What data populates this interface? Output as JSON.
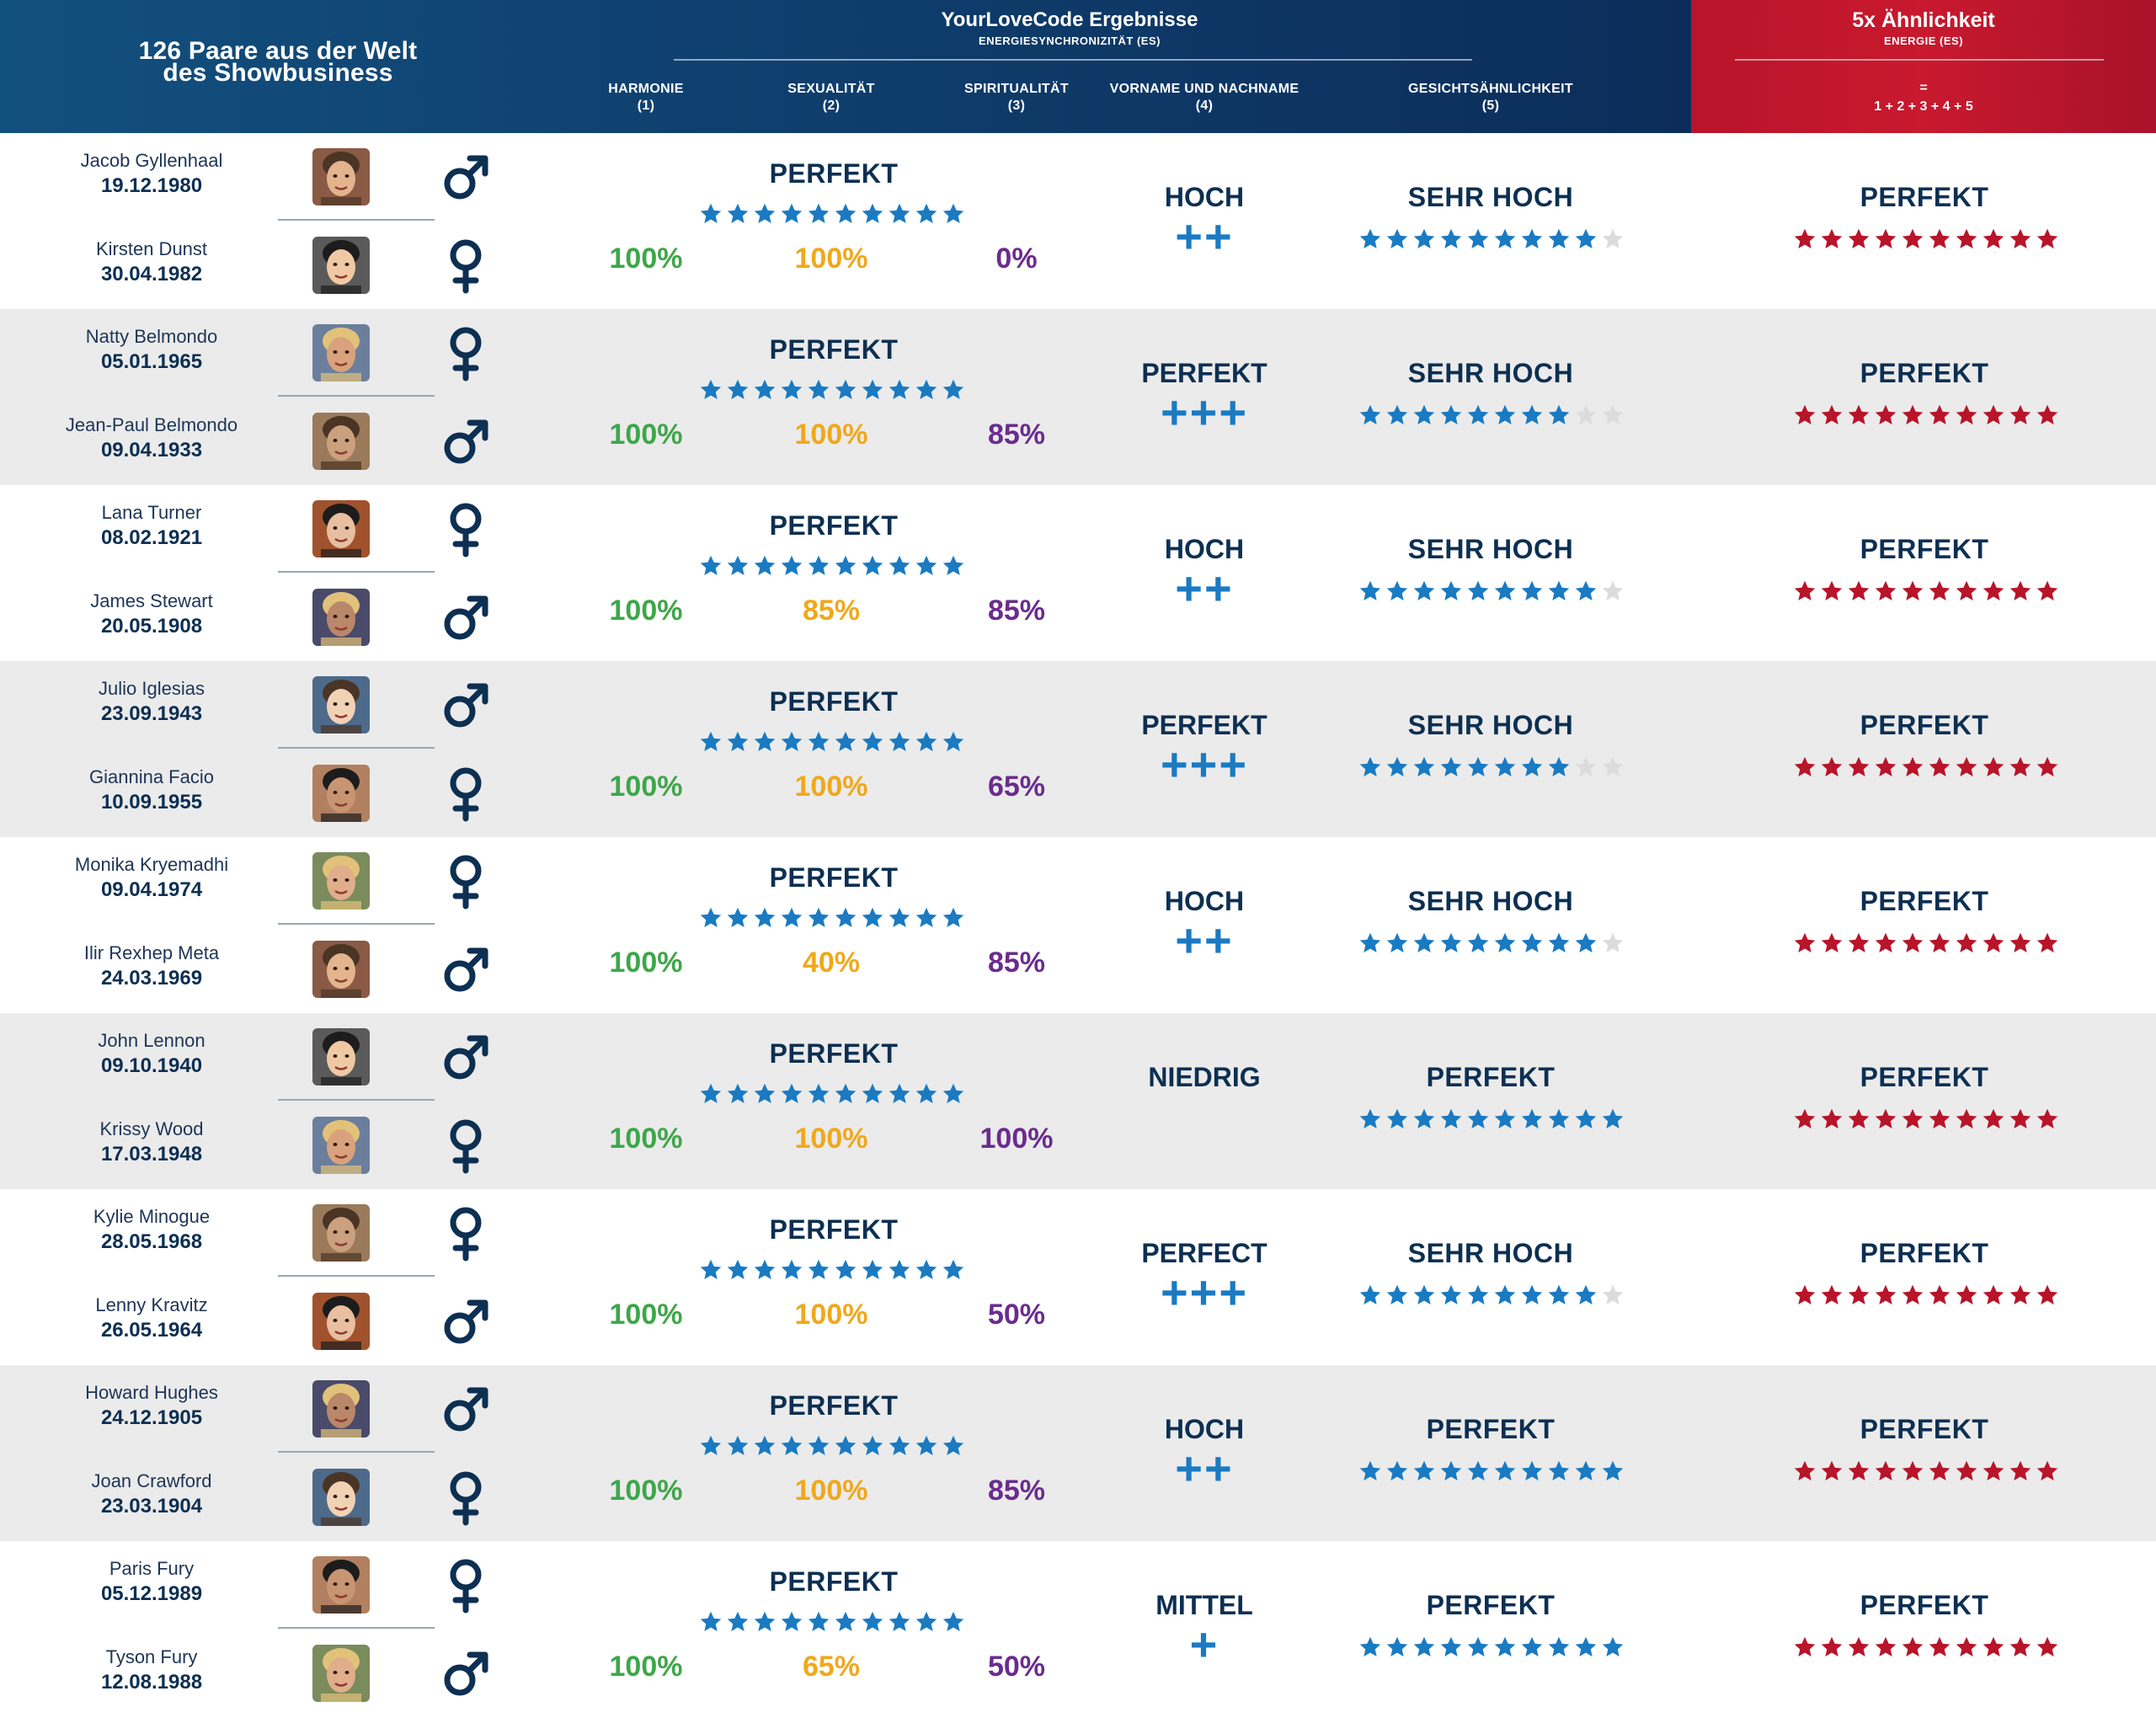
{
  "header": {
    "left_title_line1": "126 Paare aus der Welt",
    "left_title_line2": "des Showbusiness",
    "main_title": "YourLoveCode Ergebnisse",
    "main_subtitle": "ENERGIESYNCHRONIZITÄT (ES)",
    "columns": [
      {
        "label": "HARMONIE",
        "num": "(1)"
      },
      {
        "label": "SEXUALITÄT",
        "num": "(2)"
      },
      {
        "label": "SPIRITUALITÄT",
        "num": "(3)"
      },
      {
        "label": "VORNAME UND NACHNAME",
        "num": "(4)"
      },
      {
        "label": "GESICHTSÄHNLICHKEIT",
        "num": "(5)"
      }
    ],
    "red_title": "5x Ähnlichkeit",
    "red_subtitle": "ENERGIE (ES)",
    "red_eq_line1": "=",
    "red_eq_line2": "1 + 2 + 3 + 4 + 5"
  },
  "colors": {
    "harmony": "#3ea64a",
    "sexuality": "#f0a81b",
    "spirituality": "#6a2c8e",
    "blue_star": "#1a7ac2",
    "red_star": "#b8142a",
    "empty_star": "#dcdcdc"
  },
  "pairs": [
    {
      "p1": {
        "name": "Jacob Gyllenhaal",
        "date": "19.12.1980",
        "gender": "male-icon"
      },
      "p2": {
        "name": "Kirsten Dunst",
        "date": "30.04.1982",
        "gender": "female-icon"
      },
      "es_label": "PERFEKT",
      "es_stars": 10,
      "harmony": "100%",
      "sexuality": "100%",
      "spirituality": "0%",
      "name_label": "HOCH",
      "name_plus": "++",
      "face_label": "SEHR HOCH",
      "face_stars": 9,
      "total_label": "PERFEKT",
      "total_stars": 10
    },
    {
      "p1": {
        "name": "Natty Belmondo",
        "date": "05.01.1965",
        "gender": "female-icon"
      },
      "p2": {
        "name": "Jean-Paul Belmondo",
        "date": "09.04.1933",
        "gender": "male-icon"
      },
      "es_label": "PERFEKT",
      "es_stars": 10,
      "harmony": "100%",
      "sexuality": "100%",
      "spirituality": "85%",
      "name_label": "PERFEKT",
      "name_plus": "+++",
      "face_label": "SEHR HOCH",
      "face_stars": 8,
      "total_label": "PERFEKT",
      "total_stars": 10
    },
    {
      "p1": {
        "name": "Lana Turner",
        "date": "08.02.1921",
        "gender": "female-icon"
      },
      "p2": {
        "name": "James Stewart",
        "date": "20.05.1908",
        "gender": "male-icon"
      },
      "es_label": "PERFEKT",
      "es_stars": 10,
      "harmony": "100%",
      "sexuality": "85%",
      "spirituality": "85%",
      "name_label": "HOCH",
      "name_plus": "++",
      "face_label": "SEHR HOCH",
      "face_stars": 9,
      "total_label": "PERFEKT",
      "total_stars": 10
    },
    {
      "p1": {
        "name": "Julio Iglesias",
        "date": "23.09.1943",
        "gender": "male-icon"
      },
      "p2": {
        "name": "Giannina Facio",
        "date": "10.09.1955",
        "gender": "female-icon"
      },
      "es_label": "PERFEKT",
      "es_stars": 10,
      "harmony": "100%",
      "sexuality": "100%",
      "spirituality": "65%",
      "name_label": "PERFEKT",
      "name_plus": "+++",
      "face_label": "SEHR HOCH",
      "face_stars": 8,
      "total_label": "PERFEKT",
      "total_stars": 10
    },
    {
      "p1": {
        "name": "Monika Kryemadhi",
        "date": "09.04.1974",
        "gender": "female-icon"
      },
      "p2": {
        "name": "Ilir Rexhep Meta",
        "date": "24.03.1969",
        "gender": "male-icon"
      },
      "es_label": "PERFEKT",
      "es_stars": 10,
      "harmony": "100%",
      "sexuality": "40%",
      "spirituality": "85%",
      "name_label": "HOCH",
      "name_plus": "++",
      "face_label": "SEHR HOCH",
      "face_stars": 9,
      "total_label": "PERFEKT",
      "total_stars": 10
    },
    {
      "p1": {
        "name": "John Lennon",
        "date": "09.10.1940",
        "gender": "male-icon"
      },
      "p2": {
        "name": "Krissy Wood",
        "date": "17.03.1948",
        "gender": "female-icon"
      },
      "es_label": "PERFEKT",
      "es_stars": 10,
      "harmony": "100%",
      "sexuality": "100%",
      "spirituality": "100%",
      "name_label": "NIEDRIG",
      "name_plus": "",
      "face_label": "PERFEKT",
      "face_stars": 10,
      "total_label": "PERFEKT",
      "total_stars": 10
    },
    {
      "p1": {
        "name": "Kylie Minogue",
        "date": "28.05.1968",
        "gender": "female-icon"
      },
      "p2": {
        "name": "Lenny Kravitz",
        "date": "26.05.1964",
        "gender": "male-icon"
      },
      "es_label": "PERFEKT",
      "es_stars": 10,
      "harmony": "100%",
      "sexuality": "100%",
      "spirituality": "50%",
      "name_label": "PERFECT",
      "name_plus": "+++",
      "face_label": "SEHR HOCH",
      "face_stars": 9,
      "total_label": "PERFEKT",
      "total_stars": 10
    },
    {
      "p1": {
        "name": "Howard Hughes",
        "date": "24.12.1905",
        "gender": "male-icon"
      },
      "p2": {
        "name": "Joan Crawford",
        "date": "23.03.1904",
        "gender": "female-icon"
      },
      "es_label": "PERFEKT",
      "es_stars": 10,
      "harmony": "100%",
      "sexuality": "100%",
      "spirituality": "85%",
      "name_label": "HOCH",
      "name_plus": "++",
      "face_label": "PERFEKT",
      "face_stars": 10,
      "total_label": "PERFEKT",
      "total_stars": 10
    },
    {
      "p1": {
        "name": "Paris Fury",
        "date": "05.12.1989",
        "gender": "female-icon"
      },
      "p2": {
        "name": "Tyson Fury",
        "date": "12.08.1988",
        "gender": "male-icon"
      },
      "es_label": "PERFEKT",
      "es_stars": 10,
      "harmony": "100%",
      "sexuality": "65%",
      "spirituality": "50%",
      "name_label": "MITTEL",
      "name_plus": "+",
      "face_label": "PERFEKT",
      "face_stars": 10,
      "total_label": "PERFEKT",
      "total_stars": 10
    }
  ]
}
